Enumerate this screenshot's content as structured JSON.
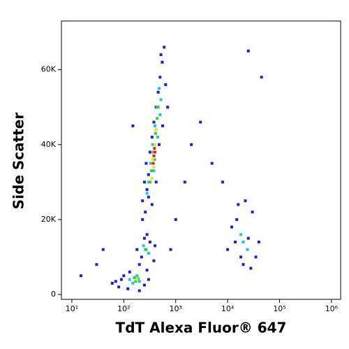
{
  "chart_data": {
    "type": "scatter",
    "xlabel": "TdT Alexa Fluor® 647",
    "ylabel": "Side Scatter",
    "xscale": "log",
    "xlim": [
      6.3,
      1500000
    ],
    "ylim": [
      -1300,
      73000
    ],
    "xticks": [
      {
        "value": 10,
        "label": "10¹"
      },
      {
        "value": 100,
        "label": "10²"
      },
      {
        "value": 1000,
        "label": "10³"
      },
      {
        "value": 10000,
        "label": "10⁴"
      },
      {
        "value": 100000,
        "label": "10⁵"
      },
      {
        "value": 1000000,
        "label": "10⁶"
      }
    ],
    "yticks": [
      0,
      {
        "value": 20000,
        "label": "20K"
      },
      {
        "value": 40000,
        "label": "40K"
      },
      {
        "value": 60000,
        "label": "60K"
      }
    ],
    "series": [
      {
        "color": "#1f1fd6",
        "x": [
          230,
          260,
          280,
          300,
          320,
          350,
          380,
          420,
          460,
          500,
          550,
          600,
          520,
          250,
          270,
          640,
          700,
          560,
          480,
          420,
          350,
          300,
          230,
          220,
          250,
          320,
          380,
          200,
          280,
          400,
          180,
          60,
          80,
          100,
          120,
          250,
          300,
          130,
          90,
          70,
          200,
          280,
          10000,
          12000,
          15000,
          20000,
          25000,
          30000,
          35000,
          40000,
          18000,
          22000,
          14000,
          28000,
          16000,
          30,
          15,
          40,
          150,
          2000,
          3000,
          5000,
          1500,
          8000,
          25000,
          45000,
          1000,
          800
        ],
        "values": [
          25000,
          22000,
          28000,
          32000,
          38000,
          42000,
          46000,
          50000,
          54000,
          58000,
          62000,
          66000,
          64000,
          30000,
          35000,
          56000,
          50000,
          45000,
          40000,
          30000,
          24000,
          26000,
          20000,
          10000,
          15000,
          14000,
          9000,
          8000,
          16000,
          13000,
          12000,
          3000,
          2000,
          5000,
          1500,
          2500,
          4000,
          6000,
          4000,
          3500,
          1000,
          6500,
          12000,
          18000,
          20000,
          8000,
          15000,
          22000,
          10000,
          14000,
          10000,
          25000,
          14000,
          7000,
          24000,
          8000,
          5000,
          12000,
          45000,
          40000,
          46000,
          35000,
          30000,
          30000,
          65000,
          58000,
          20000,
          12000
        ]
      },
      {
        "color": "#19c8e6",
        "x": [
          300,
          330,
          360,
          400,
          440,
          480,
          280,
          380,
          450,
          500,
          520,
          260,
          300,
          240,
          150,
          180,
          200,
          130,
          20000,
          18000,
          24000
        ],
        "values": [
          30000,
          35000,
          40000,
          45000,
          50000,
          55000,
          27000,
          33000,
          42000,
          48000,
          52000,
          12000,
          11000,
          13000,
          3000,
          5000,
          3500,
          4000,
          14000,
          16000,
          12000
        ]
      },
      {
        "color": "#2ed12e",
        "x": [
          340,
          370,
          410,
          440,
          320,
          390,
          460,
          170,
          190,
          270,
          160
        ],
        "values": [
          33000,
          38000,
          43000,
          47000,
          30000,
          36000,
          50000,
          3500,
          4200,
          12000,
          4500
        ]
      },
      {
        "color": "#e6e619",
        "x": [
          360,
          400,
          380,
          420,
          350,
          180
        ],
        "values": [
          36000,
          40000,
          34000,
          44000,
          31000,
          4000
        ]
      },
      {
        "color": "#e62a1a",
        "x": [
          380,
          400,
          370,
          390
        ],
        "values": [
          37000,
          38000,
          35000,
          39000
        ]
      }
    ]
  }
}
